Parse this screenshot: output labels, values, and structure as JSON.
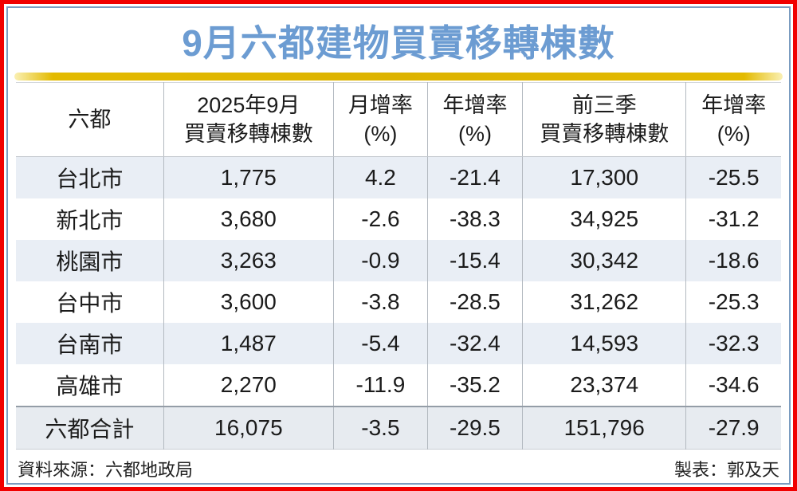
{
  "page": {
    "title": "9月六都建物買賣移轉棟數",
    "source_note": "資料來源：六都地政局",
    "credit_note": "製表：郭及天"
  },
  "colors": {
    "frame_red": "#f10000",
    "inner_border_blue": "#7b9cc0",
    "title_blue": "#6c9cd2",
    "gold_bar": "#ddb300",
    "row_band_blue": "#e9eef5",
    "total_band": "#e7ebf0"
  },
  "table": {
    "headers": [
      {
        "line1": "六都",
        "line2": ""
      },
      {
        "line1": "2025年9月",
        "line2": "買賣移轉棟數"
      },
      {
        "line1": "月增率",
        "line2": "(%)"
      },
      {
        "line1": "年增率",
        "line2": "(%)"
      },
      {
        "line1": "前三季",
        "line2": "買賣移轉棟數"
      },
      {
        "line1": "年增率",
        "line2": "(%)"
      }
    ],
    "rows": [
      {
        "city": "台北市",
        "sep_units": "1,775",
        "mom": "4.2",
        "yoy": "-21.4",
        "q3_units": "17,300",
        "q3_yoy": "-25.5"
      },
      {
        "city": "新北市",
        "sep_units": "3,680",
        "mom": "-2.6",
        "yoy": "-38.3",
        "q3_units": "34,925",
        "q3_yoy": "-31.2"
      },
      {
        "city": "桃園市",
        "sep_units": "3,263",
        "mom": "-0.9",
        "yoy": "-15.4",
        "q3_units": "30,342",
        "q3_yoy": "-18.6"
      },
      {
        "city": "台中市",
        "sep_units": "3,600",
        "mom": "-3.8",
        "yoy": "-28.5",
        "q3_units": "31,262",
        "q3_yoy": "-25.3"
      },
      {
        "city": "台南市",
        "sep_units": "1,487",
        "mom": "-5.4",
        "yoy": "-32.4",
        "q3_units": "14,593",
        "q3_yoy": "-32.3"
      },
      {
        "city": "高雄市",
        "sep_units": "2,270",
        "mom": "-11.9",
        "yoy": "-35.2",
        "q3_units": "23,374",
        "q3_yoy": "-34.6"
      }
    ],
    "total_row": {
      "city": "六都合計",
      "sep_units": "16,075",
      "mom": "-3.5",
      "yoy": "-29.5",
      "q3_units": "151,796",
      "q3_yoy": "-27.9"
    }
  },
  "chart_data": {
    "type": "table",
    "title": "9月六都建物買賣移轉棟數",
    "columns": [
      "六都",
      "2025年9月買賣移轉棟數",
      "月增率(%)",
      "年增率(%)",
      "前三季買賣移轉棟數",
      "年增率(%)"
    ],
    "rows": [
      [
        "台北市",
        1775,
        4.2,
        -21.4,
        17300,
        -25.5
      ],
      [
        "新北市",
        3680,
        -2.6,
        -38.3,
        34925,
        -31.2
      ],
      [
        "桃園市",
        3263,
        -0.9,
        -15.4,
        30342,
        -18.6
      ],
      [
        "台中市",
        3600,
        -3.8,
        -28.5,
        31262,
        -25.3
      ],
      [
        "台南市",
        1487,
        -5.4,
        -32.4,
        14593,
        -32.3
      ],
      [
        "高雄市",
        2270,
        -11.9,
        -35.2,
        23374,
        -34.6
      ]
    ],
    "total_row": [
      "六都合計",
      16075,
      -3.5,
      -29.5,
      151796,
      -27.9
    ],
    "source": "資料來源：六都地政局",
    "credit": "製表：郭及天"
  }
}
